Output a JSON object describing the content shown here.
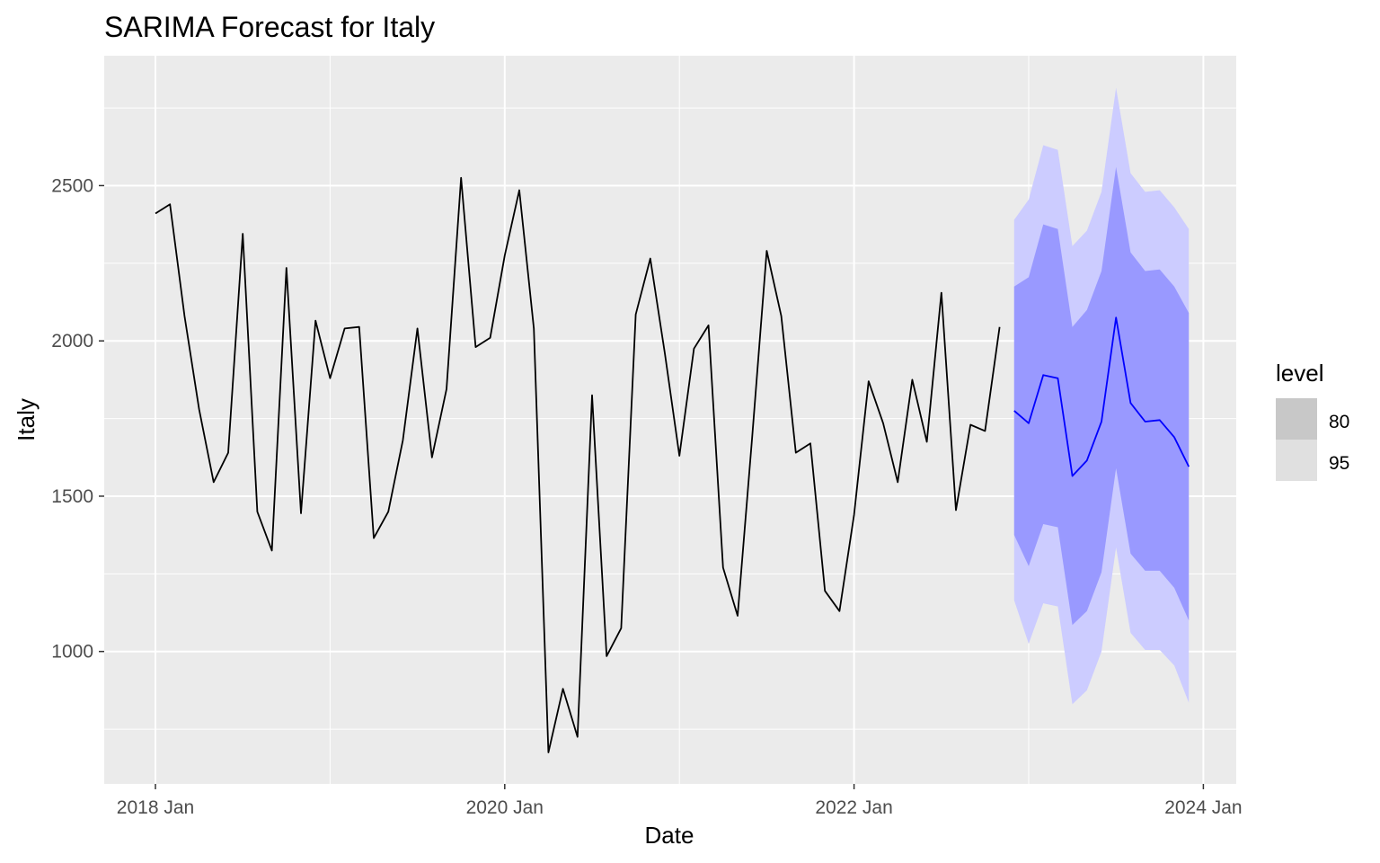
{
  "chart_data": {
    "type": "line",
    "title": "SARIMA Forecast for Italy",
    "xlabel": "Date",
    "ylabel": "Italy",
    "x_ticks": [
      "2018 Jan",
      "2020 Jan",
      "2022 Jan",
      "2024 Jan"
    ],
    "y_ticks": [
      "1000",
      "1500",
      "2000",
      "2500"
    ],
    "ylim": [
      600,
      2820
    ],
    "xlim": [
      "2017-12",
      "2024-01"
    ],
    "grid": true,
    "legend": {
      "title": "level",
      "position": "right",
      "entries": [
        {
          "label": "80",
          "color": "#c8c8c8"
        },
        {
          "label": "95",
          "color": "#e0e0e0"
        }
      ]
    },
    "colors": {
      "panel": "#ebebeb",
      "grid": "#ffffff",
      "history_line": "#000000",
      "forecast_line": "#0000ff",
      "band_95": "#ccccff",
      "band_80": "#9999ff"
    },
    "history": {
      "dates": [
        "2018-01",
        "2018-02",
        "2018-03",
        "2018-04",
        "2018-05",
        "2018-06",
        "2018-07",
        "2018-08",
        "2018-09",
        "2018-10",
        "2018-11",
        "2018-12",
        "2019-01",
        "2019-02",
        "2019-03",
        "2019-04",
        "2019-05",
        "2019-06",
        "2019-07",
        "2019-08",
        "2019-09",
        "2019-10",
        "2019-11",
        "2019-12",
        "2020-01",
        "2020-02",
        "2020-03",
        "2020-04",
        "2020-05",
        "2020-06",
        "2020-07",
        "2020-08",
        "2020-09",
        "2020-10",
        "2020-11",
        "2020-12",
        "2021-01",
        "2021-02",
        "2021-03",
        "2021-04",
        "2021-05",
        "2021-06",
        "2021-07",
        "2021-08",
        "2021-09",
        "2021-10",
        "2021-11",
        "2021-12",
        "2022-01",
        "2022-02",
        "2022-03",
        "2022-04",
        "2022-05",
        "2022-06",
        "2022-07",
        "2022-08",
        "2022-09",
        "2022-10",
        "2022-11"
      ],
      "values": [
        2410,
        2440,
        2080,
        1780,
        1545,
        1640,
        2345,
        1450,
        1325,
        2235,
        1445,
        2065,
        1880,
        2040,
        2045,
        1365,
        1450,
        1680,
        2040,
        1625,
        1845,
        2525,
        1980,
        2010,
        2275,
        2485,
        2040,
        675,
        880,
        725,
        1825,
        985,
        1075,
        2085,
        2265,
        1960,
        1630,
        1975,
        2050,
        1270,
        1115,
        1690,
        2290,
        2080,
        1640,
        1670,
        1195,
        1130,
        1440,
        1870,
        1735,
        1545,
        1875,
        1675,
        2155,
        1455,
        1730,
        1710,
        2045
      ]
    },
    "forecast": {
      "dates": [
        "2022-12",
        "2023-01",
        "2023-02",
        "2023-03",
        "2023-04",
        "2023-05",
        "2023-06",
        "2023-07",
        "2023-08",
        "2023-09",
        "2023-10",
        "2023-11",
        "2023-12"
      ],
      "mean": [
        1775,
        1735,
        1890,
        1880,
        1565,
        1615,
        1740,
        2075,
        1800,
        1740,
        1745,
        1690,
        1595
      ],
      "lo80": [
        1375,
        1275,
        1410,
        1400,
        1085,
        1130,
        1255,
        1590,
        1315,
        1260,
        1260,
        1205,
        1100
      ],
      "hi80": [
        2175,
        2205,
        2375,
        2360,
        2045,
        2100,
        2225,
        2560,
        2285,
        2225,
        2230,
        2175,
        2090
      ],
      "lo95": [
        1165,
        1025,
        1155,
        1145,
        830,
        875,
        1000,
        1335,
        1060,
        1005,
        1005,
        955,
        835
      ],
      "hi95": [
        2390,
        2455,
        2630,
        2615,
        2305,
        2355,
        2480,
        2815,
        2540,
        2480,
        2485,
        2430,
        2360
      ]
    }
  }
}
